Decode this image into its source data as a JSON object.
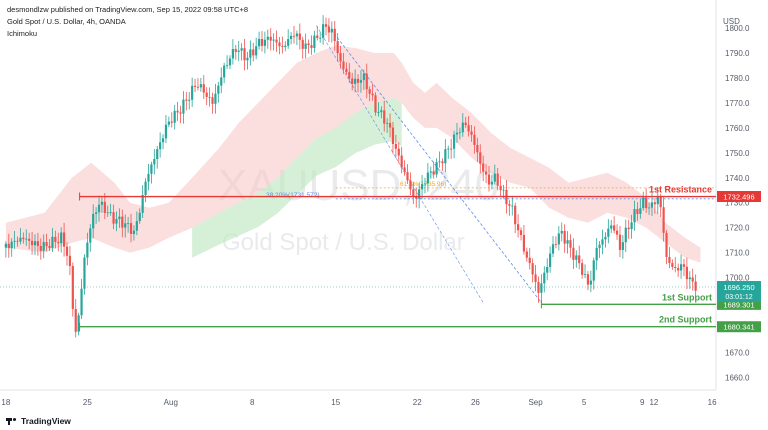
{
  "header": {
    "published_line": "desmondlzw published on TradingView.com, Sep 15, 2022 09:58 UTC+8",
    "symbol_line": "Gold Spot / U.S. Dollar, 4h, OANDA",
    "indicator": "Ichimoku"
  },
  "watermark": {
    "ticker": "XAUUSD, 240",
    "name": "Gold Spot / U.S. Dollar"
  },
  "brand": {
    "name": "TradingView",
    "icon": "tradingview-logo-icon"
  },
  "chart_data": {
    "type": "candlestick",
    "currency_label": "USD",
    "y_ticks": [
      1660,
      1670,
      1680,
      1690,
      1700,
      1710,
      1720,
      1730,
      1740,
      1750,
      1760,
      1770,
      1780,
      1790,
      1800
    ],
    "ylim": [
      1655,
      1808
    ],
    "x_ticks": [
      {
        "label": "18",
        "t": 0
      },
      {
        "label": "25",
        "t": 42
      },
      {
        "label": "Aug",
        "t": 85
      },
      {
        "label": "8",
        "t": 127
      },
      {
        "label": "15",
        "t": 170
      },
      {
        "label": "22",
        "t": 212
      },
      {
        "label": "26",
        "t": 242
      },
      {
        "label": "Sep",
        "t": 273
      },
      {
        "label": "5",
        "t": 298
      },
      {
        "label": "9",
        "t": 328
      },
      {
        "label": "12",
        "t": 334
      },
      {
        "label": "16",
        "t": 364
      }
    ],
    "xlim": [
      -2,
      366
    ],
    "colors": {
      "up": "#26a69a",
      "down": "#ef5350",
      "resistance": "#e53935",
      "support": "#43a047",
      "cloud_red": "#f8c8c8",
      "cloud_green": "#c4e8c6",
      "fib_line": "#5b8def"
    },
    "price_path": [
      [
        0,
        1712
      ],
      [
        10,
        1716
      ],
      [
        20,
        1712
      ],
      [
        30,
        1716
      ],
      [
        34,
        1708
      ],
      [
        36,
        1688
      ],
      [
        38,
        1676
      ],
      [
        42,
        1708
      ],
      [
        46,
        1724
      ],
      [
        50,
        1730
      ],
      [
        56,
        1724
      ],
      [
        62,
        1722
      ],
      [
        68,
        1718
      ],
      [
        74,
        1740
      ],
      [
        80,
        1752
      ],
      [
        85,
        1762
      ],
      [
        92,
        1768
      ],
      [
        100,
        1778
      ],
      [
        108,
        1770
      ],
      [
        114,
        1784
      ],
      [
        120,
        1792
      ],
      [
        126,
        1788
      ],
      [
        132,
        1794
      ],
      [
        138,
        1796
      ],
      [
        144,
        1792
      ],
      [
        150,
        1798
      ],
      [
        156,
        1792
      ],
      [
        162,
        1796
      ],
      [
        166,
        1801
      ],
      [
        170,
        1798
      ],
      [
        174,
        1786
      ],
      [
        180,
        1778
      ],
      [
        186,
        1780
      ],
      [
        192,
        1768
      ],
      [
        198,
        1762
      ],
      [
        204,
        1748
      ],
      [
        208,
        1740
      ],
      [
        212,
        1731
      ],
      [
        218,
        1740
      ],
      [
        224,
        1745
      ],
      [
        230,
        1752
      ],
      [
        234,
        1758
      ],
      [
        238,
        1762
      ],
      [
        242,
        1756
      ],
      [
        246,
        1746
      ],
      [
        250,
        1738
      ],
      [
        254,
        1740
      ],
      [
        258,
        1733
      ],
      [
        262,
        1728
      ],
      [
        266,
        1718
      ],
      [
        270,
        1708
      ],
      [
        273,
        1702
      ],
      [
        276,
        1694
      ],
      [
        280,
        1704
      ],
      [
        284,
        1714
      ],
      [
        288,
        1718
      ],
      [
        292,
        1712
      ],
      [
        298,
        1704
      ],
      [
        302,
        1696
      ],
      [
        306,
        1712
      ],
      [
        310,
        1716
      ],
      [
        314,
        1722
      ],
      [
        318,
        1712
      ],
      [
        322,
        1720
      ],
      [
        326,
        1726
      ],
      [
        330,
        1730
      ],
      [
        334,
        1728
      ],
      [
        338,
        1733
      ],
      [
        340,
        1722
      ],
      [
        342,
        1708
      ],
      [
        346,
        1703
      ],
      [
        350,
        1705
      ],
      [
        354,
        1699
      ],
      [
        356,
        1697
      ]
    ],
    "current_price": {
      "label": "1696.250",
      "value": 1696.25,
      "countdown": "03:01:12"
    },
    "levels": [
      {
        "name": "1st Resistance",
        "value": 1732.496,
        "label": "1732.496",
        "role": "resistance",
        "start_t": 38
      },
      {
        "name": "1st Support",
        "value": 1689.301,
        "label": "1689.301",
        "role": "support",
        "start_t": 276
      },
      {
        "name": "2nd Support",
        "value": 1680.341,
        "label": "1680.341",
        "role": "support",
        "start_t": 38
      }
    ],
    "fib": {
      "levels": [
        {
          "text": "38.20%(1731.572)",
          "value": 1731.57
        },
        {
          "text": "61.8%(1735.96)",
          "value": 1735.96
        }
      ],
      "swing_high": {
        "t": 166,
        "value": 1801
      },
      "swing_low": {
        "t": 276,
        "value": 1690
      }
    },
    "cloud": {
      "red_upper": [
        [
          0,
          1722
        ],
        [
          20,
          1726
        ],
        [
          34,
          1740
        ],
        [
          44,
          1746
        ],
        [
          56,
          1738
        ],
        [
          64,
          1730
        ],
        [
          74,
          1728
        ],
        [
          84,
          1730
        ],
        [
          96,
          1740
        ],
        [
          110,
          1752
        ],
        [
          120,
          1762
        ],
        [
          130,
          1770
        ],
        [
          140,
          1778
        ],
        [
          150,
          1786
        ],
        [
          160,
          1790
        ],
        [
          170,
          1793
        ],
        [
          180,
          1792
        ],
        [
          190,
          1790
        ],
        [
          200,
          1790
        ],
        [
          204,
          1786
        ],
        [
          210,
          1778
        ],
        [
          216,
          1774
        ],
        [
          222,
          1778
        ],
        [
          230,
          1772
        ],
        [
          240,
          1766
        ],
        [
          250,
          1758
        ],
        [
          260,
          1752
        ],
        [
          270,
          1748
        ],
        [
          280,
          1744
        ],
        [
          290,
          1738
        ],
        [
          300,
          1740
        ],
        [
          310,
          1742
        ],
        [
          320,
          1738
        ],
        [
          330,
          1732
        ],
        [
          340,
          1722
        ],
        [
          350,
          1716
        ],
        [
          358,
          1712
        ]
      ],
      "red_lower": [
        [
          0,
          1712
        ],
        [
          20,
          1710
        ],
        [
          34,
          1714
        ],
        [
          44,
          1716
        ],
        [
          56,
          1712
        ],
        [
          64,
          1710
        ],
        [
          74,
          1712
        ],
        [
          84,
          1716
        ],
        [
          96,
          1720
        ],
        [
          110,
          1726
        ],
        [
          120,
          1730
        ],
        [
          130,
          1734
        ],
        [
          140,
          1740
        ],
        [
          150,
          1748
        ],
        [
          160,
          1756
        ],
        [
          170,
          1760
        ],
        [
          180,
          1766
        ],
        [
          190,
          1770
        ],
        [
          200,
          1772
        ],
        [
          204,
          1770
        ],
        [
          210,
          1764
        ],
        [
          216,
          1760
        ],
        [
          222,
          1760
        ],
        [
          230,
          1756
        ],
        [
          240,
          1748
        ],
        [
          250,
          1742
        ],
        [
          260,
          1738
        ],
        [
          270,
          1736
        ],
        [
          280,
          1728
        ],
        [
          290,
          1724
        ],
        [
          300,
          1722
        ],
        [
          310,
          1726
        ],
        [
          320,
          1724
        ],
        [
          330,
          1720
        ],
        [
          340,
          1714
        ],
        [
          350,
          1708
        ],
        [
          358,
          1706
        ]
      ]
    }
  },
  "labels": {
    "resistance": "1st Resistance",
    "support1": "1st Support",
    "support2": "2nd Support"
  }
}
